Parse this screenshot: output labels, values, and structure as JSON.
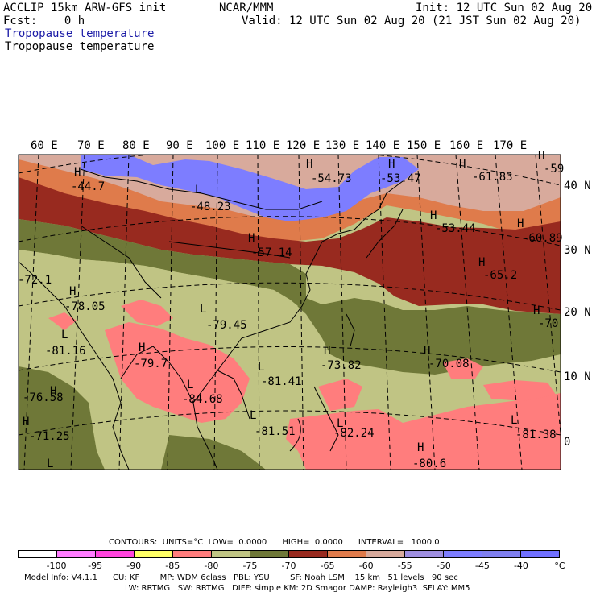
{
  "header": {
    "title_left": "ACCLIP 15km ARW-GFS init",
    "center": "NCAR/MMM",
    "init": "Init: 12 UTC Sun 02 Aug 20",
    "fcst": "Fcst:    0 h",
    "valid": "Valid: 12 UTC Sun 02 Aug 20 (21 JST Sun 02 Aug 20)",
    "field_line_1": "Tropopause temperature",
    "field_line_2": "Tropopause temperature"
  },
  "map": {
    "lon_labels": [
      "60 E",
      "70 E",
      "80 E",
      "90 E",
      "100 E",
      "110 E",
      "120 E",
      "130 E",
      "140 E",
      "150 E",
      "160 E",
      "170 E"
    ],
    "lat_labels": [
      "40 N",
      "30 N",
      "20 N",
      "10 N",
      "0"
    ],
    "extrema": [
      {
        "type": "H",
        "value": "-44.7"
      },
      {
        "type": "L",
        "value": "-48.23"
      },
      {
        "type": "H",
        "value": "-54.73"
      },
      {
        "type": "H",
        "value": "-53.47"
      },
      {
        "type": "H",
        "value": "-61.83"
      },
      {
        "type": "H",
        "value": "-59"
      },
      {
        "type": "H",
        "value": "-53.44"
      },
      {
        "type": "H",
        "value": "-60.89"
      },
      {
        "type": "H",
        "value": "-57.14"
      },
      {
        "type": "H",
        "value": "-65.2"
      },
      {
        "type": "H",
        "value": "-78.05"
      },
      {
        "type": "L",
        "value": "-79.45"
      },
      {
        "type": "H",
        "value": "-70"
      },
      {
        "type": "L",
        "value": "-81.16"
      },
      {
        "type": "H",
        "value": "-79.7"
      },
      {
        "type": "H",
        "value": "-73.82"
      },
      {
        "type": "H",
        "value": "-70.08"
      },
      {
        "type": "L",
        "value": "-81.41"
      },
      {
        "type": "L",
        "value": "-84.68"
      },
      {
        "type": "H",
        "value": "-76.58"
      },
      {
        "type": "L",
        "value": "-81.51"
      },
      {
        "type": "L",
        "value": "-82.24"
      },
      {
        "type": "H",
        "value": "-71.25"
      },
      {
        "type": "L",
        "value": "-81.38"
      },
      {
        "type": "H",
        "value": "-80.6"
      },
      {
        "type": "L",
        "value": "-72.1"
      }
    ]
  },
  "legend": {
    "contours_line": "CONTOURS:  UNITS=°C  LOW=  0.0000      HIGH=  0.0000      INTERVAL=   1000.0",
    "colors": [
      "#ffffff",
      "#ff7cff",
      "#ff44dd",
      "#ffff66",
      "#ff7d7d",
      "#c0c484",
      "#6f7838",
      "#982a1f",
      "#df7b4b",
      "#d8aa9c",
      "#9e8ee0",
      "#7d7dff",
      "#7f7ff0",
      "#7070ff"
    ],
    "ticks": [
      "-100",
      "-95",
      "-90",
      "-85",
      "-80",
      "-75",
      "-70",
      "-65",
      "-60",
      "-55",
      "-50",
      "-45",
      "-40",
      "°C"
    ]
  },
  "footer": {
    "line1": "Model Info: V4.1.1      CU: KF        MP: WDM 6class   PBL: YSU        SF: Noah LSM    15 km   51 levels   90 sec",
    "line2": "LW: RRTMG   SW: RRTMG   DIFF: simple KM: 2D Smagor DAMP: Rayleigh3  SFLAY: MM5"
  }
}
